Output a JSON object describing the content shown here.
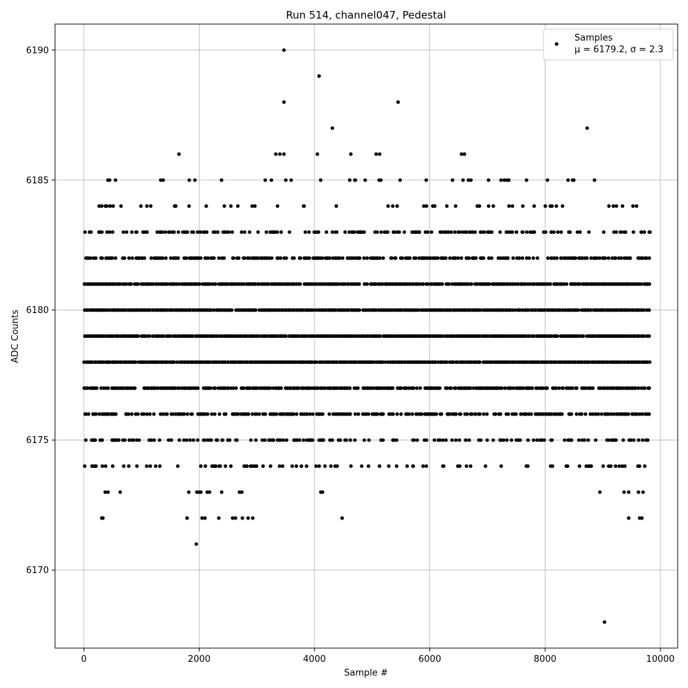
{
  "chart_data": {
    "type": "scatter",
    "title": "Run 514, channel047, Pedestal",
    "xlabel": "Sample #",
    "ylabel": "ADC Counts",
    "xlim": [
      -500,
      10300
    ],
    "ylim": [
      6167,
      6191
    ],
    "x_ticks": [
      0,
      2000,
      4000,
      6000,
      8000,
      10000
    ],
    "y_ticks": [
      6170,
      6175,
      6180,
      6185,
      6190
    ],
    "grid": true,
    "marker_color": "#000000",
    "legend": {
      "placement": "top-right",
      "label": "Samples",
      "stats_text": "μ = 6179.2, σ = 2.3"
    },
    "series": [
      {
        "name": "Samples",
        "x_range": [
          0,
          9820
        ],
        "level_density": [
          {
            "y": 6174,
            "fraction": 0.2
          },
          {
            "y": 6175,
            "fraction": 0.35
          },
          {
            "y": 6176,
            "fraction": 0.6
          },
          {
            "y": 6177,
            "fraction": 0.75
          },
          {
            "y": 6178,
            "fraction": 0.95
          },
          {
            "y": 6179,
            "fraction": 0.95
          },
          {
            "y": 6180,
            "fraction": 0.95
          },
          {
            "y": 6181,
            "fraction": 0.85
          },
          {
            "y": 6182,
            "fraction": 0.6
          },
          {
            "y": 6183,
            "fraction": 0.38
          },
          {
            "y": 6184,
            "fraction": 0.12
          },
          {
            "y": 6185,
            "fraction": 0.1
          }
        ],
        "points": [
          {
            "x": 3470,
            "y": 6190
          },
          {
            "x": 4080,
            "y": 6189
          },
          {
            "x": 3470,
            "y": 6188
          },
          {
            "x": 5450,
            "y": 6188
          },
          {
            "x": 4310,
            "y": 6187
          },
          {
            "x": 8730,
            "y": 6187
          },
          {
            "x": 1650,
            "y": 6186
          },
          {
            "x": 3330,
            "y": 6186
          },
          {
            "x": 3400,
            "y": 6186
          },
          {
            "x": 3470,
            "y": 6186
          },
          {
            "x": 4050,
            "y": 6186
          },
          {
            "x": 4630,
            "y": 6186
          },
          {
            "x": 5070,
            "y": 6186
          },
          {
            "x": 5130,
            "y": 6186
          },
          {
            "x": 6550,
            "y": 6186
          },
          {
            "x": 6600,
            "y": 6186
          },
          {
            "x": 310,
            "y": 6172
          },
          {
            "x": 330,
            "y": 6172
          },
          {
            "x": 1790,
            "y": 6172
          },
          {
            "x": 2050,
            "y": 6172
          },
          {
            "x": 2100,
            "y": 6172
          },
          {
            "x": 2340,
            "y": 6172
          },
          {
            "x": 2580,
            "y": 6172
          },
          {
            "x": 2630,
            "y": 6172
          },
          {
            "x": 2750,
            "y": 6172
          },
          {
            "x": 2850,
            "y": 6172
          },
          {
            "x": 2930,
            "y": 6172
          },
          {
            "x": 4480,
            "y": 6172
          },
          {
            "x": 9450,
            "y": 6172
          },
          {
            "x": 9640,
            "y": 6172
          },
          {
            "x": 9680,
            "y": 6172
          },
          {
            "x": 370,
            "y": 6173
          },
          {
            "x": 420,
            "y": 6173
          },
          {
            "x": 630,
            "y": 6173
          },
          {
            "x": 1820,
            "y": 6173
          },
          {
            "x": 1960,
            "y": 6173
          },
          {
            "x": 2000,
            "y": 6173
          },
          {
            "x": 2030,
            "y": 6173
          },
          {
            "x": 2140,
            "y": 6173
          },
          {
            "x": 2180,
            "y": 6173
          },
          {
            "x": 2390,
            "y": 6173
          },
          {
            "x": 2700,
            "y": 6173
          },
          {
            "x": 2740,
            "y": 6173
          },
          {
            "x": 4110,
            "y": 6173
          },
          {
            "x": 4140,
            "y": 6173
          },
          {
            "x": 8950,
            "y": 6173
          },
          {
            "x": 9370,
            "y": 6173
          },
          {
            "x": 9450,
            "y": 6173
          },
          {
            "x": 9620,
            "y": 6173
          },
          {
            "x": 9700,
            "y": 6173
          },
          {
            "x": 1950,
            "y": 6171
          },
          {
            "x": 9030,
            "y": 6168
          }
        ]
      }
    ]
  }
}
